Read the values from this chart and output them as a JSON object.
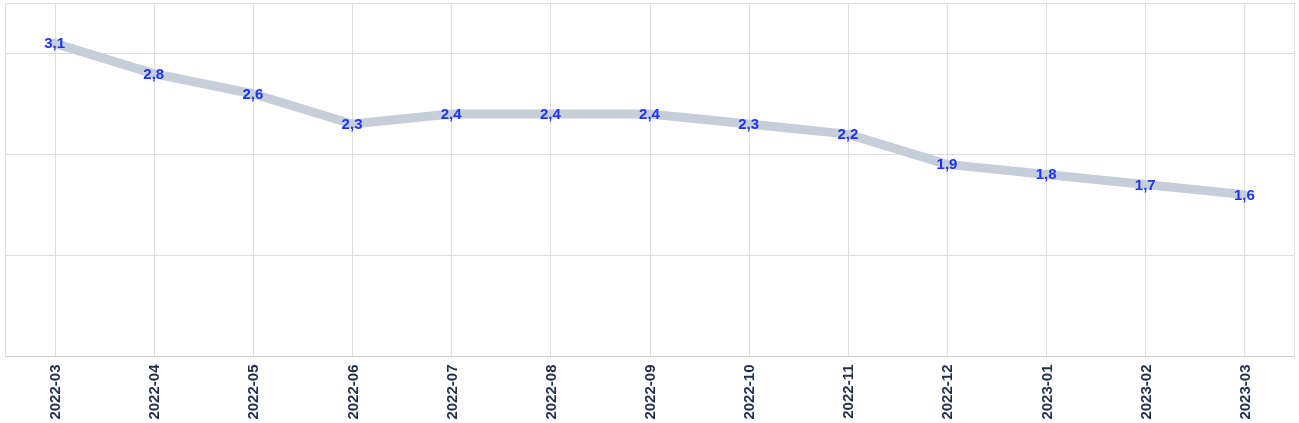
{
  "chart_data": {
    "type": "line",
    "categories": [
      "2022-03",
      "2022-04",
      "2022-05",
      "2022-06",
      "2022-07",
      "2022-08",
      "2022-09",
      "2022-10",
      "2022-11",
      "2022-12",
      "2023-01",
      "2023-02",
      "2023-03"
    ],
    "series": [
      {
        "color": "#c6ceda",
        "values": [
          3.1,
          2.8,
          2.6,
          2.3,
          2.4,
          2.4,
          2.4,
          2.3,
          2.2,
          1.9,
          1.8,
          1.7,
          1.6
        ],
        "value_labels": [
          "3,1",
          "2,8",
          "2,6",
          "2,3",
          "2,4",
          "2,4",
          "2,4",
          "2,3",
          "2,2",
          "1,9",
          "1,8",
          "1,7",
          "1,6"
        ]
      }
    ],
    "tick_labels": "x",
    "grid": true,
    "marker": "none",
    "line_style": "solid"
  }
}
